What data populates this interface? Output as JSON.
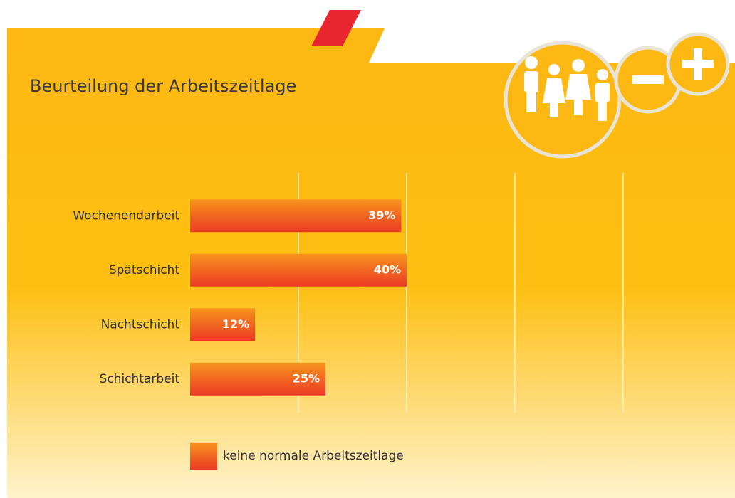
{
  "chart_data": {
    "type": "bar",
    "orientation": "horizontal",
    "title": "Beurteilung der Arbeitszeitlage",
    "categories": [
      "Wochenendarbeit",
      "Spätschicht",
      "Nachtschicht",
      "Schichtarbeit"
    ],
    "series": [
      {
        "name": "keine normale Arbeitszeitlage",
        "color": "#ef4a23",
        "values": [
          39,
          40,
          12,
          25
        ],
        "value_labels": [
          "39%",
          "40%",
          "12%",
          "25%"
        ]
      }
    ],
    "xlim": [
      0,
      100
    ],
    "xticks": [
      20,
      40,
      60,
      80
    ],
    "grid": true,
    "legend": "bottom"
  }
}
